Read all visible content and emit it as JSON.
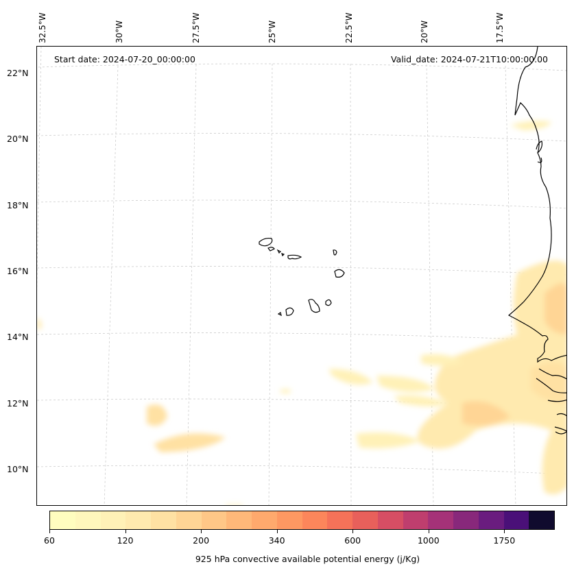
{
  "map": {
    "start_date_text": "Start date: 2024-07-20_00:00:00",
    "valid_date_text": "Valid_date: 2024-07-21T10:00:00.00",
    "longitude_labels": [
      "32.5°W",
      "30°W",
      "27.5°W",
      "25°W",
      "22.5°W",
      "20°W",
      "17.5°W"
    ],
    "latitude_labels": [
      "22°N",
      "20°N",
      "18°N",
      "16°N",
      "14°N",
      "12°N",
      "10°N"
    ],
    "extent": {
      "lon_min": -32.5,
      "lon_max": -16.1,
      "lat_min": 8.9,
      "lat_max": 22.8
    },
    "field": "925 hPa convective available potential energy",
    "coastline_color": "#000000",
    "gridline_color": "#cccccc"
  },
  "colorbar": {
    "label": "925 hPa convective available potential energy (j/Kg)",
    "tick_labels": [
      "60",
      "120",
      "200",
      "340",
      "600",
      "1000",
      "1750"
    ],
    "colors": [
      "#fffdbf",
      "#fff7bc",
      "#fff1b7",
      "#ffeaaf",
      "#ffe1a3",
      "#ffd595",
      "#ffc787",
      "#ffb879",
      "#ffa96d",
      "#fe9862",
      "#fc865b",
      "#f57259",
      "#e8605b",
      "#d64e64",
      "#bf3e6e",
      "#a53278",
      "#88287b",
      "#6a1c7f",
      "#4a1078",
      "#100b2e"
    ]
  }
}
